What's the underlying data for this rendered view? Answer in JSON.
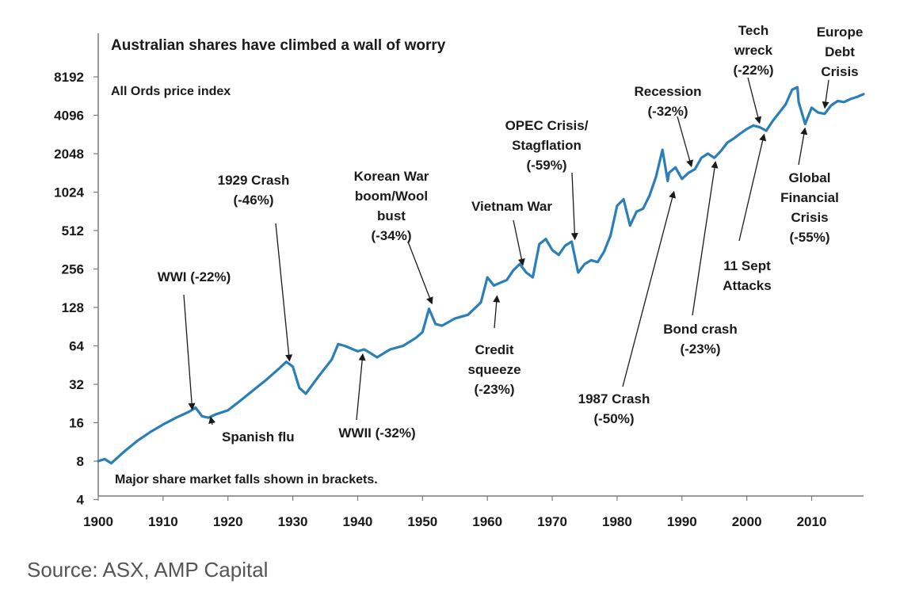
{
  "chart_data": {
    "type": "line",
    "title": "Australian shares have climbed a wall of worry",
    "subtitle": "All Ords price index",
    "footnote": "Major share market falls shown in brackets.",
    "y_scale": "log2",
    "ylim": [
      4,
      11000
    ],
    "xlim": [
      1900,
      2018
    ],
    "y_ticks": [
      4,
      8,
      16,
      32,
      64,
      128,
      256,
      512,
      1024,
      2048,
      4096,
      8192
    ],
    "x_ticks": [
      1900,
      1910,
      1920,
      1930,
      1940,
      1950,
      1960,
      1970,
      1980,
      1990,
      2000,
      2010
    ],
    "grid": false,
    "line_color": "#2a7fb8",
    "series": [
      {
        "name": "",
        "x": [
          1900,
          1901,
          1902,
          1904,
          1906,
          1908,
          1910,
          1912,
          1914,
          1915,
          1916,
          1917,
          1918,
          1920,
          1922,
          1924,
          1926,
          1928,
          1929,
          1930,
          1931,
          1932,
          1934,
          1936,
          1937,
          1938,
          1940,
          1941,
          1942,
          1943,
          1945,
          1947,
          1949,
          1950,
          1951,
          1952,
          1953,
          1955,
          1957,
          1959,
          1960,
          1961,
          1962,
          1963,
          1964,
          1965,
          1966,
          1967,
          1968,
          1969,
          1970,
          1971,
          1972,
          1973,
          1974,
          1975,
          1976,
          1977,
          1978,
          1979,
          1980,
          1981,
          1982,
          1983,
          1984,
          1985,
          1986,
          1987,
          1987.8,
          1988,
          1989,
          1990,
          1991,
          1992,
          1993,
          1994,
          1995,
          1996,
          1997,
          1998,
          1999,
          2000,
          2001,
          2002,
          2003,
          2004,
          2005,
          2006,
          2007,
          2007.8,
          2008,
          2009,
          2010,
          2011,
          2012,
          2013,
          2014,
          2015,
          2016,
          2017,
          2018
        ],
        "values": [
          8,
          8.3,
          7.7,
          9.5,
          11.5,
          13.5,
          15.5,
          17.5,
          19.5,
          21,
          18,
          17.5,
          18.5,
          20,
          24,
          29,
          35,
          43,
          48,
          44,
          30,
          27,
          37,
          50,
          66,
          64,
          58,
          60,
          56,
          52,
          60,
          64,
          74,
          82,
          125,
          95,
          92,
          105,
          112,
          140,
          220,
          190,
          200,
          210,
          250,
          280,
          240,
          220,
          400,
          440,
          360,
          330,
          390,
          420,
          240,
          280,
          300,
          290,
          350,
          470,
          800,
          900,
          560,
          720,
          760,
          960,
          1350,
          2200,
          1250,
          1450,
          1600,
          1300,
          1450,
          1550,
          1900,
          2050,
          1900,
          2150,
          2500,
          2700,
          2950,
          3200,
          3400,
          3300,
          3100,
          3700,
          4300,
          5000,
          6500,
          6800,
          5200,
          3500,
          4700,
          4300,
          4200,
          4900,
          5300,
          5200,
          5500,
          5700,
          6000
        ]
      }
    ],
    "annotations": [
      {
        "lines": [
          "WWI (-22%)"
        ],
        "x": 1914.5,
        "y": 20
      },
      {
        "lines": [
          "Spanish flu"
        ],
        "x": 1917.3,
        "y": 18
      },
      {
        "lines": [
          "1929 Crash",
          "(-46%)"
        ],
        "x": 1929.5,
        "y": 48
      },
      {
        "lines": [
          "Korean War",
          "boom/Wool",
          "bust",
          "(-34%)"
        ],
        "x": 1951.5,
        "y": 135
      },
      {
        "lines": [
          "WWII (-32%)"
        ],
        "x": 1940.8,
        "y": 56
      },
      {
        "lines": [
          "Vietnam War"
        ],
        "x": 1965.5,
        "y": 270
      },
      {
        "lines": [
          "Credit",
          "squeeze",
          "(-23%)"
        ],
        "x": 1961.5,
        "y": 160
      },
      {
        "lines": [
          "OPEC Crisis/",
          "Stagflation",
          "(-59%)"
        ],
        "x": 1973.5,
        "y": 430
      },
      {
        "lines": [
          "1987 Crash",
          "(-50%)"
        ],
        "x": 1988.8,
        "y": 1050
      },
      {
        "lines": [
          "Recession",
          "(-32%)"
        ],
        "x": 1991.5,
        "y": 1600
      },
      {
        "lines": [
          "Bond crash",
          "(-23%)"
        ],
        "x": 1995.2,
        "y": 1800
      },
      {
        "lines": [
          "Tech",
          "wreck",
          "(-22%)"
        ],
        "x": 2002,
        "y": 3500
      },
      {
        "lines": [
          "11 Sept",
          "Attacks"
        ],
        "x": 2002.7,
        "y": 2950
      },
      {
        "lines": [
          "Europe",
          "Debt",
          "Crisis"
        ],
        "x": 2012,
        "y": 4600
      },
      {
        "lines": [
          "Global",
          "Financial",
          "Crisis"
        ],
        "x": 2009,
        "y": 3300
      },
      {
        "lines": [
          "(-55%)"
        ],
        "x": null,
        "y": null
      }
    ]
  },
  "source": "Source: ASX, AMP Capital"
}
